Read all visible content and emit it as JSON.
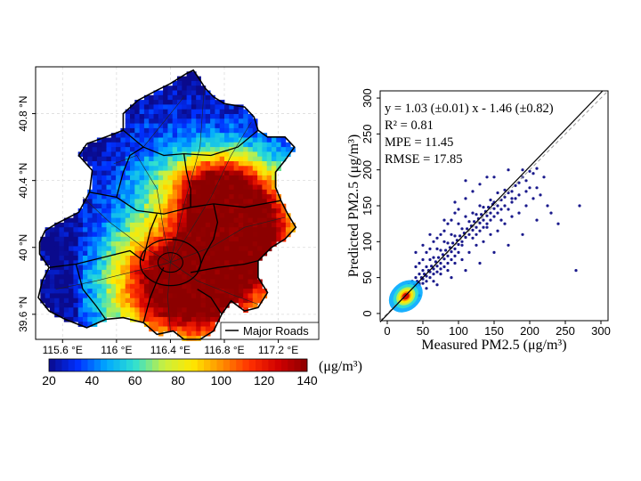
{
  "chart_data": [
    {
      "type": "heatmap",
      "x_ticks": [
        "115.6 °E",
        "116 °E",
        "116.4 °E",
        "116.8 °E",
        "117.2 °E"
      ],
      "x_tick_values": [
        115.6,
        116.0,
        116.4,
        116.8,
        117.2
      ],
      "y_ticks": [
        "39.6 °N",
        "40 °N",
        "40.4 °N",
        "40.8 °N"
      ],
      "y_tick_values": [
        39.6,
        40.0,
        40.4,
        40.8
      ],
      "xlim": [
        115.4,
        117.5
      ],
      "ylim": [
        39.45,
        41.08
      ],
      "grid": true,
      "legend": {
        "line_label": "Major Roads",
        "placement": "bottom-right"
      },
      "colorbar": {
        "ticks": [
          "20",
          "40",
          "60",
          "80",
          "100",
          "120",
          "140"
        ],
        "range": [
          20,
          140
        ],
        "unit_label": "(μg/m³)",
        "colors": [
          "#0a0a8c",
          "#0030ff",
          "#00a8ff",
          "#30e0d0",
          "#c8f040",
          "#ffe800",
          "#ff9000",
          "#ff3000",
          "#d00000",
          "#8c0000"
        ]
      }
    },
    {
      "type": "scatter",
      "xlabel": "Measured PM2.5 (μg/m³)",
      "ylabel": "Predicted PM2.5 (μg/m³)",
      "xlim": [
        -10,
        310
      ],
      "ylim": [
        -10,
        310
      ],
      "x_ticks": [
        0,
        50,
        100,
        150,
        200,
        250,
        300
      ],
      "y_ticks": [
        0,
        50,
        100,
        150,
        200,
        250,
        300
      ],
      "point_color": "#1a1a8c",
      "annotations": [
        "y = 1.03 (±0.01) x - 1.46 (±0.82)",
        "R² = 0.81",
        "MPE = 11.45",
        "RMSE = 17.85"
      ],
      "fit": {
        "slope": 1.03,
        "intercept": -1.46
      },
      "one_to_one_line": true,
      "points": [
        [
          18,
          20
        ],
        [
          22,
          25
        ],
        [
          25,
          22
        ],
        [
          28,
          30
        ],
        [
          30,
          28
        ],
        [
          32,
          35
        ],
        [
          35,
          32
        ],
        [
          38,
          40
        ],
        [
          40,
          38
        ],
        [
          42,
          45
        ],
        [
          45,
          42
        ],
        [
          48,
          50
        ],
        [
          50,
          48
        ],
        [
          52,
          55
        ],
        [
          55,
          52
        ],
        [
          58,
          60
        ],
        [
          60,
          58
        ],
        [
          62,
          66
        ],
        [
          65,
          62
        ],
        [
          68,
          72
        ],
        [
          70,
          66
        ],
        [
          72,
          78
        ],
        [
          75,
          70
        ],
        [
          78,
          82
        ],
        [
          80,
          76
        ],
        [
          82,
          88
        ],
        [
          85,
          80
        ],
        [
          88,
          92
        ],
        [
          90,
          86
        ],
        [
          92,
          98
        ],
        [
          95,
          90
        ],
        [
          98,
          102
        ],
        [
          100,
          96
        ],
        [
          102,
          108
        ],
        [
          105,
          100
        ],
        [
          108,
          112
        ],
        [
          110,
          106
        ],
        [
          112,
          118
        ],
        [
          115,
          110
        ],
        [
          118,
          122
        ],
        [
          120,
          116
        ],
        [
          122,
          128
        ],
        [
          125,
          120
        ],
        [
          128,
          132
        ],
        [
          130,
          126
        ],
        [
          132,
          138
        ],
        [
          135,
          130
        ],
        [
          138,
          142
        ],
        [
          140,
          136
        ],
        [
          142,
          148
        ],
        [
          145,
          140
        ],
        [
          148,
          152
        ],
        [
          150,
          146
        ],
        [
          155,
          150
        ],
        [
          160,
          158
        ],
        [
          165,
          162
        ],
        [
          170,
          168
        ],
        [
          175,
          170
        ],
        [
          180,
          178
        ],
        [
          185,
          182
        ],
        [
          190,
          190
        ],
        [
          195,
          185
        ],
        [
          200,
          198
        ],
        [
          205,
          195
        ],
        [
          210,
          202
        ],
        [
          40,
          65
        ],
        [
          45,
          70
        ],
        [
          50,
          75
        ],
        [
          55,
          85
        ],
        [
          60,
          90
        ],
        [
          65,
          100
        ],
        [
          70,
          105
        ],
        [
          75,
          110
        ],
        [
          80,
          115
        ],
        [
          85,
          125
        ],
        [
          90,
          130
        ],
        [
          95,
          140
        ],
        [
          100,
          145
        ],
        [
          110,
          160
        ],
        [
          120,
          170
        ],
        [
          130,
          180
        ],
        [
          140,
          190
        ],
        [
          35,
          15
        ],
        [
          45,
          25
        ],
        [
          55,
          35
        ],
        [
          65,
          45
        ],
        [
          75,
          55
        ],
        [
          85,
          60
        ],
        [
          95,
          70
        ],
        [
          105,
          75
        ],
        [
          115,
          85
        ],
        [
          125,
          95
        ],
        [
          135,
          100
        ],
        [
          145,
          110
        ],
        [
          155,
          115
        ],
        [
          165,
          125
        ],
        [
          175,
          135
        ],
        [
          185,
          140
        ],
        [
          195,
          150
        ],
        [
          205,
          160
        ],
        [
          215,
          165
        ],
        [
          225,
          150
        ],
        [
          240,
          125
        ],
        [
          265,
          60
        ],
        [
          270,
          150
        ],
        [
          220,
          190
        ],
        [
          210,
          175
        ],
        [
          180,
          160
        ],
        [
          160,
          130
        ],
        [
          150,
          155
        ],
        [
          140,
          120
        ],
        [
          130,
          150
        ],
        [
          120,
          140
        ],
        [
          110,
          135
        ],
        [
          100,
          125
        ],
        [
          90,
          110
        ],
        [
          80,
          100
        ],
        [
          70,
          90
        ],
        [
          60,
          75
        ],
        [
          50,
          60
        ],
        [
          40,
          50
        ],
        [
          30,
          40
        ],
        [
          20,
          30
        ],
        [
          15,
          18
        ],
        [
          25,
          35
        ],
        [
          35,
          45
        ],
        [
          45,
          55
        ],
        [
          55,
          65
        ],
        [
          65,
          78
        ],
        [
          75,
          88
        ],
        [
          85,
          98
        ],
        [
          95,
          108
        ],
        [
          105,
          118
        ],
        [
          115,
          128
        ],
        [
          125,
          138
        ],
        [
          135,
          148
        ],
        [
          145,
          158
        ],
        [
          155,
          168
        ],
        [
          165,
          172
        ],
        [
          175,
          155
        ],
        [
          185,
          165
        ],
        [
          195,
          170
        ],
        [
          200,
          175
        ],
        [
          80,
          130
        ],
        [
          95,
          155
        ],
        [
          110,
          185
        ],
        [
          150,
          190
        ],
        [
          170,
          200
        ],
        [
          190,
          200
        ],
        [
          60,
          110
        ],
        [
          50,
          95
        ],
        [
          40,
          85
        ],
        [
          70,
          40
        ],
        [
          90,
          50
        ],
        [
          110,
          60
        ],
        [
          130,
          70
        ],
        [
          150,
          85
        ],
        [
          170,
          95
        ],
        [
          190,
          110
        ],
        [
          210,
          130
        ],
        [
          230,
          140
        ],
        [
          120,
          105
        ],
        [
          125,
          110
        ],
        [
          130,
          115
        ],
        [
          135,
          120
        ],
        [
          140,
          125
        ],
        [
          145,
          130
        ],
        [
          150,
          135
        ],
        [
          155,
          140
        ],
        [
          160,
          145
        ],
        [
          165,
          150
        ],
        [
          170,
          145
        ],
        [
          175,
          160
        ],
        [
          105,
          95
        ],
        [
          100,
          85
        ],
        [
          95,
          80
        ],
        [
          90,
          75
        ],
        [
          85,
          70
        ],
        [
          80,
          65
        ],
        [
          75,
          62
        ],
        [
          70,
          58
        ],
        [
          65,
          55
        ],
        [
          60,
          50
        ],
        [
          55,
          45
        ],
        [
          50,
          42
        ],
        [
          45,
          40
        ],
        [
          40,
          35
        ],
        [
          35,
          30
        ],
        [
          30,
          25
        ],
        [
          28,
          24
        ],
        [
          26,
          22
        ],
        [
          24,
          20
        ],
        [
          22,
          18
        ],
        [
          20,
          16
        ],
        [
          18,
          15
        ]
      ]
    }
  ]
}
